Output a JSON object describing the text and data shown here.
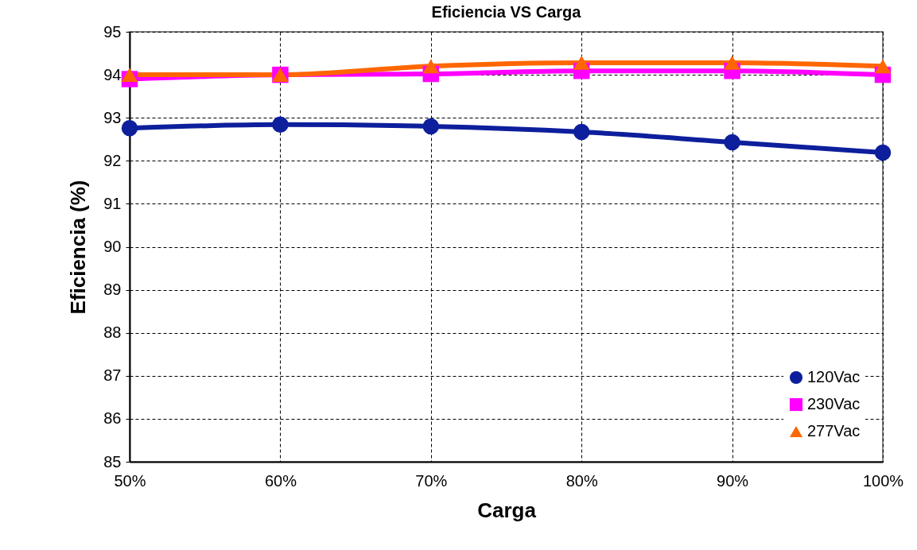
{
  "chart_data": {
    "type": "line",
    "title": "Eficiencia VS Carga",
    "xlabel": "Carga",
    "ylabel": "Eficiencia (%)",
    "categories": [
      "50%",
      "60%",
      "70%",
      "80%",
      "90%",
      "100%"
    ],
    "series": [
      {
        "name": "120Vac",
        "color": "#0d1f9c",
        "marker": "circle",
        "values": [
          92.76,
          92.84,
          92.8,
          92.67,
          92.43,
          92.19
        ]
      },
      {
        "name": "230Vac",
        "color": "#ff00ff",
        "marker": "square",
        "values": [
          93.9,
          94.0,
          94.02,
          94.09,
          94.09,
          94.0
        ]
      },
      {
        "name": "277Vac",
        "color": "#ff6600",
        "marker": "triangle",
        "values": [
          94.0,
          94.0,
          94.2,
          94.28,
          94.28,
          94.2
        ]
      }
    ],
    "ylim": [
      85,
      95
    ],
    "yticks": [
      85,
      86,
      87,
      88,
      89,
      90,
      91,
      92,
      93,
      94,
      95
    ],
    "grid": true,
    "legend": "bottom right",
    "line_style": "solid"
  }
}
